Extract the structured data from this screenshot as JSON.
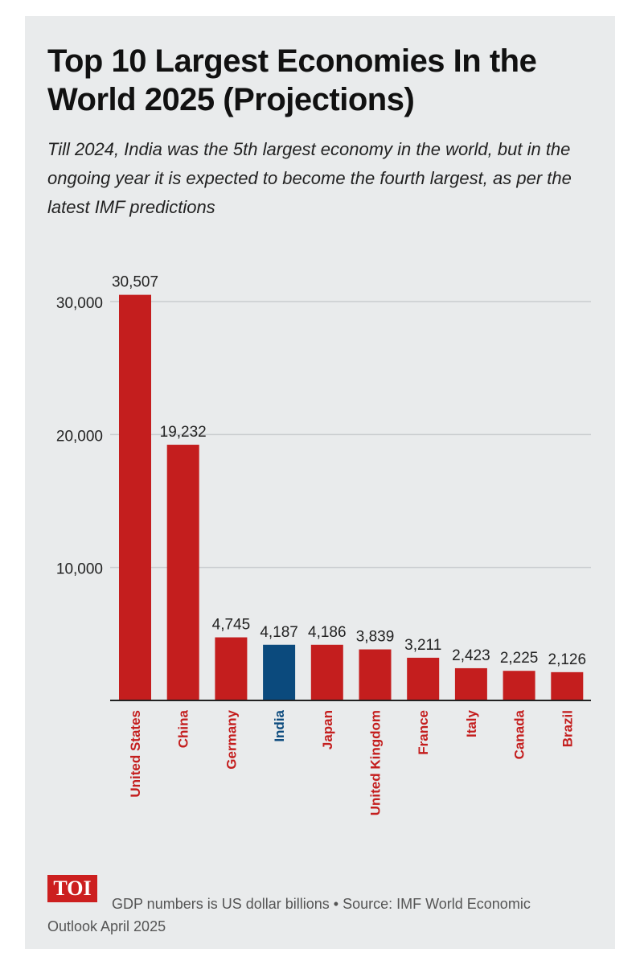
{
  "title": "Top 10 Largest Economies In the World 2025 (Projections)",
  "subtitle": "Till 2024, India was the 5th largest economy in the world, but in the ongoing year it is expected to become the fourth largest, as per the latest IMF predictions",
  "logo": "TOI",
  "footer": "GDP numbers is US dollar billions • Source: IMF World Economic Outlook April 2025",
  "colors": {
    "bar": "#c41e1e",
    "highlight": "#0b4a7d",
    "grid": "#c9cccf",
    "axis": "#222222"
  },
  "chart_data": {
    "type": "bar",
    "categories": [
      "United States",
      "China",
      "Germany",
      "India",
      "Japan",
      "United Kingdom",
      "France",
      "Italy",
      "Canada",
      "Brazil"
    ],
    "values": [
      30507,
      19232,
      4745,
      4187,
      4186,
      3839,
      3211,
      2423,
      2225,
      2126
    ],
    "data_labels": [
      "30,507",
      "19,232",
      "4,745",
      "4,187",
      "4,186",
      "3,839",
      "3,211",
      "2,423",
      "2,225",
      "2,126"
    ],
    "highlight": "India",
    "ylim": [
      0,
      30000
    ],
    "yticks": [
      10000,
      20000,
      30000
    ],
    "ytick_labels": [
      "10,000",
      "20,000",
      "30,000"
    ],
    "grid": true
  }
}
